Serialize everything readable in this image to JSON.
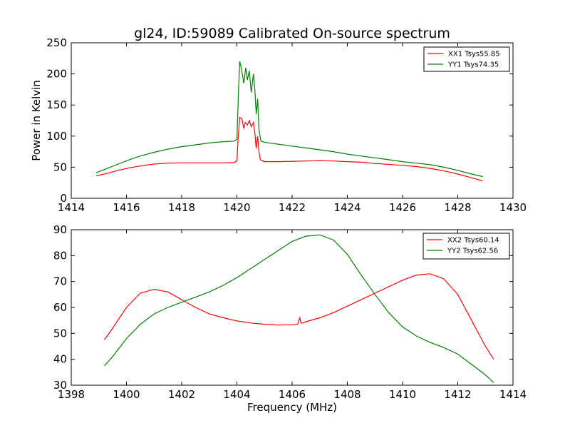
{
  "figure_title": "gl24, ID:59089 Calibrated On-source spectrum",
  "chart_data": [
    {
      "type": "line",
      "ylabel": "Power in Kelvin",
      "xlabel": "",
      "xlim": [
        1414,
        1430
      ],
      "ylim": [
        0,
        250
      ],
      "xticks": [
        1414,
        1416,
        1418,
        1420,
        1422,
        1424,
        1426,
        1428,
        1430
      ],
      "yticks": [
        0,
        50,
        100,
        150,
        200,
        250
      ],
      "legend_position": "top-right",
      "series": [
        {
          "name": "XX1 Tsys55.85",
          "color": "#ff0000",
          "x": [
            1414.9,
            1415.3,
            1415.7,
            1416.1,
            1416.5,
            1417.0,
            1417.5,
            1418.0,
            1418.5,
            1419.0,
            1419.5,
            1419.9,
            1420.0,
            1420.05,
            1420.1,
            1420.18,
            1420.25,
            1420.3,
            1420.38,
            1420.45,
            1420.52,
            1420.6,
            1420.65,
            1420.7,
            1420.75,
            1420.8,
            1420.85,
            1421.0,
            1421.5,
            1422.0,
            1422.5,
            1423.0,
            1423.5,
            1424.0,
            1424.5,
            1425.0,
            1425.5,
            1426.0,
            1426.5,
            1427.0,
            1427.5,
            1428.0,
            1428.5,
            1428.9
          ],
          "y": [
            36,
            40,
            45,
            49,
            52,
            55,
            56.5,
            57,
            57,
            57,
            57,
            57.5,
            60,
            100,
            130,
            128,
            112,
            122,
            118,
            125,
            115,
            122,
            105,
            80,
            100,
            75,
            62,
            59,
            59,
            59.5,
            60,
            60.5,
            60,
            59,
            58,
            56,
            54.5,
            53,
            51,
            48,
            44,
            39,
            33,
            28
          ]
        },
        {
          "name": "YY1 Tsys74.35",
          "color": "#008000",
          "x": [
            1414.9,
            1415.3,
            1415.7,
            1416.1,
            1416.5,
            1417.0,
            1417.5,
            1418.0,
            1418.5,
            1419.0,
            1419.5,
            1419.9,
            1420.0,
            1420.05,
            1420.1,
            1420.15,
            1420.25,
            1420.32,
            1420.38,
            1420.45,
            1420.52,
            1420.6,
            1420.65,
            1420.7,
            1420.75,
            1420.8,
            1420.87,
            1421.0,
            1421.5,
            1422.0,
            1422.5,
            1423.0,
            1423.5,
            1424.0,
            1424.5,
            1425.0,
            1425.5,
            1426.0,
            1426.5,
            1427.0,
            1427.5,
            1428.0,
            1428.5,
            1428.9
          ],
          "y": [
            41,
            48,
            55,
            62,
            68,
            74,
            79,
            83,
            86,
            89,
            91,
            92,
            95,
            160,
            220,
            212,
            185,
            210,
            190,
            205,
            170,
            200,
            175,
            135,
            160,
            110,
            92,
            90,
            87,
            84,
            81,
            78,
            75,
            71,
            68,
            65,
            62,
            59,
            56.5,
            54,
            50,
            45,
            39,
            35
          ]
        }
      ]
    },
    {
      "type": "line",
      "ylabel": "",
      "xlabel": "Frequency (MHz)",
      "xlim": [
        1398,
        1414
      ],
      "ylim": [
        30,
        90
      ],
      "xticks": [
        1398,
        1400,
        1402,
        1404,
        1406,
        1408,
        1410,
        1412,
        1414
      ],
      "yticks": [
        30,
        40,
        50,
        60,
        70,
        80,
        90
      ],
      "legend_position": "top-right",
      "series": [
        {
          "name": "XX2 Tsys60.14",
          "color": "#ff0000",
          "x": [
            1399.2,
            1399.5,
            1400.0,
            1400.5,
            1401.0,
            1401.5,
            1402.0,
            1402.5,
            1403.0,
            1403.5,
            1404.0,
            1404.5,
            1405.0,
            1405.5,
            1406.0,
            1406.2,
            1406.28,
            1406.32,
            1406.4,
            1406.5,
            1407.0,
            1407.5,
            1408.0,
            1408.5,
            1409.0,
            1409.5,
            1410.0,
            1410.5,
            1411.0,
            1411.5,
            1412.0,
            1412.5,
            1413.0,
            1413.3
          ],
          "y": [
            47.5,
            52,
            60,
            65.5,
            67,
            66,
            63,
            60,
            57.5,
            56,
            54.8,
            54,
            53.5,
            53.2,
            53.3,
            53.5,
            56,
            54,
            54,
            54.5,
            56,
            58,
            60.5,
            63,
            65.5,
            68,
            70.5,
            72.5,
            73,
            71,
            65,
            55,
            45,
            40
          ]
        },
        {
          "name": "YY2 Tsys62.56",
          "color": "#008000",
          "x": [
            1399.2,
            1399.5,
            1400.0,
            1400.5,
            1401.0,
            1401.5,
            1402.0,
            1402.5,
            1403.0,
            1403.5,
            1404.0,
            1404.5,
            1405.0,
            1405.5,
            1406.0,
            1406.5,
            1407.0,
            1407.5,
            1408.0,
            1408.5,
            1409.0,
            1409.5,
            1410.0,
            1410.5,
            1411.0,
            1411.5,
            1412.0,
            1412.5,
            1413.0,
            1413.3
          ],
          "y": [
            37.5,
            41,
            48,
            53.5,
            57.5,
            60,
            62,
            64,
            66,
            68.5,
            71.5,
            75,
            78.5,
            82,
            85.5,
            87.5,
            88,
            86,
            80.5,
            72.5,
            65,
            58,
            52.5,
            49,
            46.5,
            44.5,
            42,
            38,
            34,
            31
          ]
        }
      ]
    }
  ]
}
